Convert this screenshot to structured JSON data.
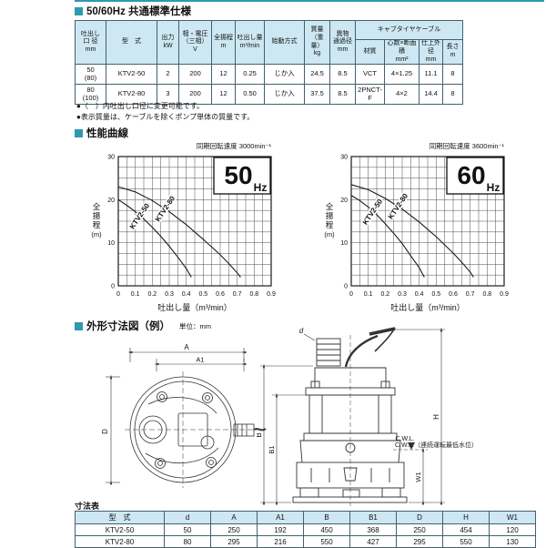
{
  "page": {
    "accent_color": "#2E9AB0",
    "table_header_bg": "#CDE8F2",
    "border_color": "#44606E"
  },
  "sections": {
    "spec_title": "50/60Hz 共通標準仕様",
    "curves_title": "性能曲線",
    "dimensions_title": "外形寸法図（例）",
    "dimensions_unit": "単位：mm",
    "dim_table_title": "寸法表"
  },
  "spec_table": {
    "headers": {
      "bore": "吐出し\n口 径\nmm",
      "model": "型　式",
      "output": "出力\nkW",
      "voltage": "相・電圧\n（三相）\nV",
      "head": "全揚程\nm",
      "discharge": "吐出し量\nm³/min",
      "starting": "始動方式",
      "mass": "質量\n（重量）\nkg",
      "passage": "異物\n通過径\nmm",
      "cable_group": "キャブタイヤケーブル",
      "material": "材質",
      "cores": "心数×断面積\nmm²",
      "od": "仕上外径\nmm",
      "length": "長さ\nm"
    },
    "rows": [
      [
        "50\n(80)",
        "KTV2-50",
        "2",
        "200",
        "12",
        "0.25",
        "じか入",
        "24.5",
        "8.5",
        "VCT",
        "4×1.25",
        "11.1",
        "8"
      ],
      [
        "80\n(100)",
        "KTV2-80",
        "3",
        "200",
        "12",
        "0.50",
        "じか入",
        "37.5",
        "8.5",
        "2PNCT-F",
        "4×2",
        "14.4",
        "8"
      ]
    ],
    "notes": [
      "●（　）内吐出し口径に変更可能です。",
      "●表示質量は、ケーブルを除くポンプ単体の質量です。"
    ]
  },
  "chart_data": [
    {
      "type": "line",
      "title": "同期回転速度 3000min⁻¹",
      "freq": "50",
      "freq_unit": "Hz",
      "xlabel": "吐出し量（m³/min）",
      "ylabel": "全揚程",
      "ylabel_unit": "(m)",
      "xlim": [
        0,
        0.9
      ],
      "ylim": [
        0,
        30
      ],
      "x_major": 0.1,
      "x_minor": 0.05,
      "y_major": 10,
      "y_minor": 2.5,
      "grid": true,
      "series": [
        {
          "name": "KTV2-50",
          "points": [
            [
              0,
              20
            ],
            [
              0.05,
              18.7
            ],
            [
              0.1,
              17.2
            ],
            [
              0.15,
              15.5
            ],
            [
              0.2,
              13.6
            ],
            [
              0.25,
              11.5
            ],
            [
              0.3,
              9.2
            ],
            [
              0.35,
              6.7
            ],
            [
              0.4,
              4.0
            ],
            [
              0.43,
              2.0
            ]
          ]
        },
        {
          "name": "KTV2-80",
          "points": [
            [
              0,
              23
            ],
            [
              0.1,
              21.8
            ],
            [
              0.2,
              19.8
            ],
            [
              0.3,
              17.2
            ],
            [
              0.4,
              14.2
            ],
            [
              0.5,
              10.8
            ],
            [
              0.6,
              7.2
            ],
            [
              0.65,
              5.2
            ],
            [
              0.7,
              3.0
            ],
            [
              0.72,
              2.0
            ]
          ]
        }
      ]
    },
    {
      "type": "line",
      "title": "同期回転速度 3600min⁻¹",
      "freq": "60",
      "freq_unit": "Hz",
      "xlabel": "吐出し量（m³/min）",
      "ylabel": "全揚程",
      "ylabel_unit": "(m)",
      "xlim": [
        0,
        0.9
      ],
      "ylim": [
        0,
        30
      ],
      "x_major": 0.1,
      "x_minor": 0.05,
      "y_major": 10,
      "y_minor": 2.5,
      "grid": true,
      "series": [
        {
          "name": "KTV2-50",
          "points": [
            [
              0,
              21
            ],
            [
              0.05,
              19.8
            ],
            [
              0.1,
              18.3
            ],
            [
              0.15,
              16.5
            ],
            [
              0.2,
              14.4
            ],
            [
              0.25,
              12.2
            ],
            [
              0.3,
              9.8
            ],
            [
              0.35,
              7.0
            ],
            [
              0.4,
              4.2
            ],
            [
              0.43,
              2.0
            ]
          ]
        },
        {
          "name": "KTV2-80",
          "points": [
            [
              0,
              23.5
            ],
            [
              0.1,
              22.3
            ],
            [
              0.2,
              20.3
            ],
            [
              0.3,
              17.8
            ],
            [
              0.4,
              14.8
            ],
            [
              0.5,
              11.4
            ],
            [
              0.6,
              7.6
            ],
            [
              0.65,
              5.5
            ],
            [
              0.7,
              3.2
            ],
            [
              0.72,
              2.0
            ]
          ]
        }
      ]
    }
  ],
  "drawing": {
    "top_view": {
      "a": "A",
      "a1": "A1",
      "d_dia": "D"
    },
    "front_view": {
      "b": "B",
      "b1": "B1",
      "h": "H",
      "w1": "W1",
      "d": "d",
      "cwl": "C.W.L."
    },
    "cwl_note": "C.W.L.（連続運転最低水位）"
  },
  "dim_table": {
    "headers": [
      "型　式",
      "d",
      "A",
      "A1",
      "B",
      "B1",
      "D",
      "H",
      "W1"
    ],
    "rows": [
      [
        "KTV2-50",
        "50",
        "250",
        "192",
        "450",
        "368",
        "250",
        "454",
        "120"
      ],
      [
        "KTV2-80",
        "80",
        "295",
        "216",
        "550",
        "427",
        "295",
        "550",
        "130"
      ]
    ]
  }
}
